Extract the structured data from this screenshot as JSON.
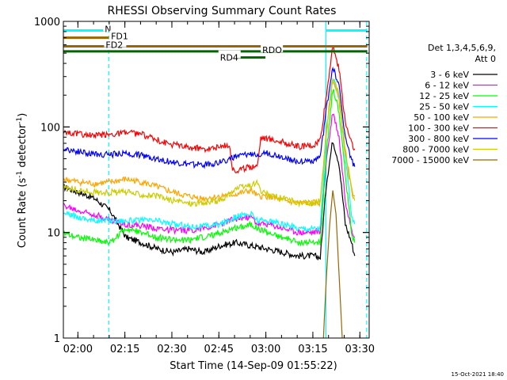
{
  "chart_data": {
    "type": "line",
    "title": "RHESSI Observing Summary Count Rates",
    "xlabel": "Start Time (14-Sep-09 01:55:22)",
    "ylabel_main": "Count Rate (s",
    "ylabel_sup1": "-1",
    "ylabel_mid": " detector",
    "ylabel_sup2": "-1",
    "ylabel_end": ")",
    "yscale": "log",
    "ylim": [
      1,
      1000
    ],
    "xlim_minutes": [
      0,
      97.6
    ],
    "x_ticks": [
      {
        "label": "02:00",
        "t": 4.63
      },
      {
        "label": "02:15",
        "t": 19.63
      },
      {
        "label": "02:30",
        "t": 34.63
      },
      {
        "label": "02:45",
        "t": 49.63
      },
      {
        "label": "03:00",
        "t": 64.63
      },
      {
        "label": "03:15",
        "t": 79.63
      },
      {
        "label": "03:30",
        "t": 94.63
      }
    ],
    "y_ticks": [
      {
        "label": "1",
        "v": 1
      },
      {
        "label": "10",
        "v": 10
      },
      {
        "label": "100",
        "v": 100
      },
      {
        "label": "1000",
        "v": 1000
      }
    ],
    "legend_header": [
      "Det 1,3,4,5,6,9,",
      "Att 0"
    ],
    "legend_placement": "right",
    "series": [
      {
        "name": "3 - 6 keV",
        "color": "#000000",
        "points": [
          [
            0,
            27
          ],
          [
            5,
            24
          ],
          [
            10,
            21
          ],
          [
            15,
            16
          ],
          [
            20,
            9
          ],
          [
            25,
            8
          ],
          [
            30,
            7
          ],
          [
            35,
            6.5
          ],
          [
            40,
            7
          ],
          [
            45,
            6.5
          ],
          [
            50,
            7.5
          ],
          [
            55,
            8
          ],
          [
            60,
            7.5
          ],
          [
            65,
            7
          ],
          [
            70,
            6.5
          ],
          [
            75,
            6
          ],
          [
            80,
            6
          ],
          [
            82,
            5.8
          ],
          [
            84,
            30
          ],
          [
            86,
            75
          ],
          [
            88,
            45
          ],
          [
            90,
            12
          ],
          [
            92,
            8
          ],
          [
            93,
            6
          ]
        ]
      },
      {
        "name": "6 - 12 keV",
        "color": "#ff00ff",
        "points": [
          [
            0,
            18
          ],
          [
            5,
            16
          ],
          [
            10,
            15
          ],
          [
            15,
            13
          ],
          [
            20,
            12
          ],
          [
            25,
            11.5
          ],
          [
            30,
            11
          ],
          [
            35,
            10.5
          ],
          [
            40,
            10.5
          ],
          [
            45,
            11
          ],
          [
            50,
            12
          ],
          [
            55,
            13.5
          ],
          [
            60,
            14
          ],
          [
            62,
            12
          ],
          [
            65,
            12
          ],
          [
            70,
            11
          ],
          [
            75,
            10
          ],
          [
            80,
            10
          ],
          [
            82,
            10.5
          ],
          [
            84,
            50
          ],
          [
            86,
            140
          ],
          [
            88,
            80
          ],
          [
            90,
            20
          ],
          [
            92,
            11
          ],
          [
            93,
            9
          ]
        ]
      },
      {
        "name": "12 - 25 keV",
        "color": "#00ff00",
        "points": [
          [
            0,
            10
          ],
          [
            5,
            9
          ],
          [
            10,
            8.5
          ],
          [
            15,
            8
          ],
          [
            20,
            11
          ],
          [
            25,
            10
          ],
          [
            30,
            9
          ],
          [
            35,
            8.5
          ],
          [
            40,
            8.5
          ],
          [
            45,
            9
          ],
          [
            50,
            10
          ],
          [
            55,
            11
          ],
          [
            60,
            12
          ],
          [
            62,
            11
          ],
          [
            65,
            10
          ],
          [
            70,
            9
          ],
          [
            75,
            8
          ],
          [
            80,
            8
          ],
          [
            82,
            8
          ],
          [
            84,
            60
          ],
          [
            86,
            230
          ],
          [
            88,
            140
          ],
          [
            90,
            35
          ],
          [
            92,
            10
          ],
          [
            93,
            8
          ]
        ]
      },
      {
        "name": "25 - 50 keV",
        "color": "#00ffff",
        "points": [
          [
            0,
            15
          ],
          [
            5,
            14
          ],
          [
            10,
            13
          ],
          [
            15,
            13
          ],
          [
            20,
            13
          ],
          [
            25,
            13
          ],
          [
            30,
            13
          ],
          [
            35,
            12
          ],
          [
            40,
            11.5
          ],
          [
            45,
            11.5
          ],
          [
            50,
            12
          ],
          [
            55,
            14
          ],
          [
            60,
            15
          ],
          [
            62,
            13
          ],
          [
            65,
            13
          ],
          [
            70,
            12
          ],
          [
            75,
            11
          ],
          [
            80,
            11
          ],
          [
            82,
            11
          ],
          [
            84,
            90
          ],
          [
            86,
            300
          ],
          [
            88,
            190
          ],
          [
            90,
            50
          ],
          [
            92,
            15
          ],
          [
            93,
            12
          ]
        ]
      },
      {
        "name": "50 - 100 keV",
        "color": "#ffa500",
        "points": [
          [
            0,
            32
          ],
          [
            5,
            30
          ],
          [
            10,
            29
          ],
          [
            15,
            30
          ],
          [
            20,
            32
          ],
          [
            25,
            30
          ],
          [
            30,
            27
          ],
          [
            35,
            24
          ],
          [
            40,
            22
          ],
          [
            45,
            21
          ],
          [
            50,
            22
          ],
          [
            55,
            23
          ],
          [
            60,
            25
          ],
          [
            62,
            22
          ],
          [
            65,
            22
          ],
          [
            70,
            20
          ],
          [
            75,
            19
          ],
          [
            80,
            19
          ],
          [
            82,
            19
          ],
          [
            84,
            100
          ],
          [
            86,
            280
          ],
          [
            88,
            180
          ],
          [
            90,
            55
          ],
          [
            92,
            25
          ],
          [
            93,
            22
          ]
        ]
      },
      {
        "name": "100 - 300 keV",
        "color": "#ff0000",
        "points": [
          [
            0,
            90
          ],
          [
            5,
            85
          ],
          [
            10,
            82
          ],
          [
            15,
            85
          ],
          [
            20,
            88
          ],
          [
            25,
            85
          ],
          [
            30,
            75
          ],
          [
            35,
            68
          ],
          [
            40,
            64
          ],
          [
            45,
            62
          ],
          [
            50,
            64
          ],
          [
            53,
            68
          ],
          [
            54,
            40
          ],
          [
            55,
            38
          ],
          [
            60,
            42
          ],
          [
            62,
            44
          ],
          [
            63,
            80
          ],
          [
            65,
            78
          ],
          [
            70,
            72
          ],
          [
            75,
            65
          ],
          [
            80,
            66
          ],
          [
            82,
            75
          ],
          [
            84,
            200
          ],
          [
            86,
            600
          ],
          [
            88,
            350
          ],
          [
            90,
            110
          ],
          [
            92,
            70
          ],
          [
            93,
            62
          ]
        ]
      },
      {
        "name": "300 - 800 keV",
        "color": "#0000ff",
        "points": [
          [
            0,
            62
          ],
          [
            5,
            58
          ],
          [
            10,
            55
          ],
          [
            15,
            55
          ],
          [
            20,
            56
          ],
          [
            25,
            54
          ],
          [
            30,
            50
          ],
          [
            35,
            46
          ],
          [
            40,
            44
          ],
          [
            45,
            44
          ],
          [
            50,
            46
          ],
          [
            53,
            50
          ],
          [
            55,
            52
          ],
          [
            60,
            55
          ],
          [
            62,
            56
          ],
          [
            65,
            56
          ],
          [
            70,
            52
          ],
          [
            75,
            47
          ],
          [
            80,
            48
          ],
          [
            82,
            52
          ],
          [
            84,
            150
          ],
          [
            86,
            380
          ],
          [
            88,
            240
          ],
          [
            90,
            80
          ],
          [
            92,
            48
          ],
          [
            93,
            42
          ]
        ]
      },
      {
        "name": "800 - 7000 keV",
        "color": "#cccc00",
        "points": [
          [
            0,
            27
          ],
          [
            5,
            25
          ],
          [
            10,
            24
          ],
          [
            15,
            24
          ],
          [
            20,
            24
          ],
          [
            25,
            23
          ],
          [
            30,
            22
          ],
          [
            35,
            20
          ],
          [
            40,
            19
          ],
          [
            45,
            19
          ],
          [
            50,
            20
          ],
          [
            53,
            23
          ],
          [
            55,
            26
          ],
          [
            60,
            28
          ],
          [
            62,
            30
          ],
          [
            63,
            24
          ],
          [
            65,
            23
          ],
          [
            70,
            21
          ],
          [
            75,
            19
          ],
          [
            80,
            19
          ],
          [
            82,
            20
          ],
          [
            84,
            90
          ],
          [
            86,
            300
          ],
          [
            88,
            200
          ],
          [
            90,
            60
          ],
          [
            92,
            25
          ],
          [
            93,
            20
          ]
        ]
      },
      {
        "name": "7000 - 15000 keV",
        "color": "#996600",
        "points": [
          [
            83,
            1
          ],
          [
            84,
            4
          ],
          [
            85,
            12
          ],
          [
            86,
            25
          ],
          [
            87,
            15
          ],
          [
            88,
            4
          ],
          [
            89,
            1
          ]
        ]
      }
    ],
    "annotations": [
      {
        "label": "N",
        "color": "#00ffff",
        "t0": 0,
        "t1": 13.4,
        "v": 820,
        "label_t": 13.2
      },
      {
        "label": "N",
        "color": "#00ffff",
        "t0": 83.8,
        "t1": 97,
        "v": 820,
        "label_t": null
      },
      {
        "label": "FD1",
        "color": "#996600",
        "t0": 0,
        "t1": 14.5,
        "v": 700,
        "label_t": 15.2
      },
      {
        "label": "FD2",
        "color": "#996600",
        "t0": 0,
        "t1": 97,
        "v": 580,
        "label_t": 13.5
      },
      {
        "label": "RDO",
        "color": "#006600",
        "t0": 0,
        "t1": 97,
        "v": 520,
        "label_t": 63.5
      },
      {
        "label": "RD4",
        "color": "#006600",
        "t0": 53.5,
        "t1": 64.5,
        "v": 455,
        "label_t": 50
      }
    ],
    "vertical_markers": [
      {
        "t": 14.5,
        "color": "#00ffff",
        "style": "dashed"
      },
      {
        "t": 83.8,
        "color": "#00ffff",
        "style": "solid"
      },
      {
        "t": 96.8,
        "color": "#00ffff",
        "style": "dashed"
      }
    ],
    "footer_date": "15-Oct-2021 18:40"
  }
}
